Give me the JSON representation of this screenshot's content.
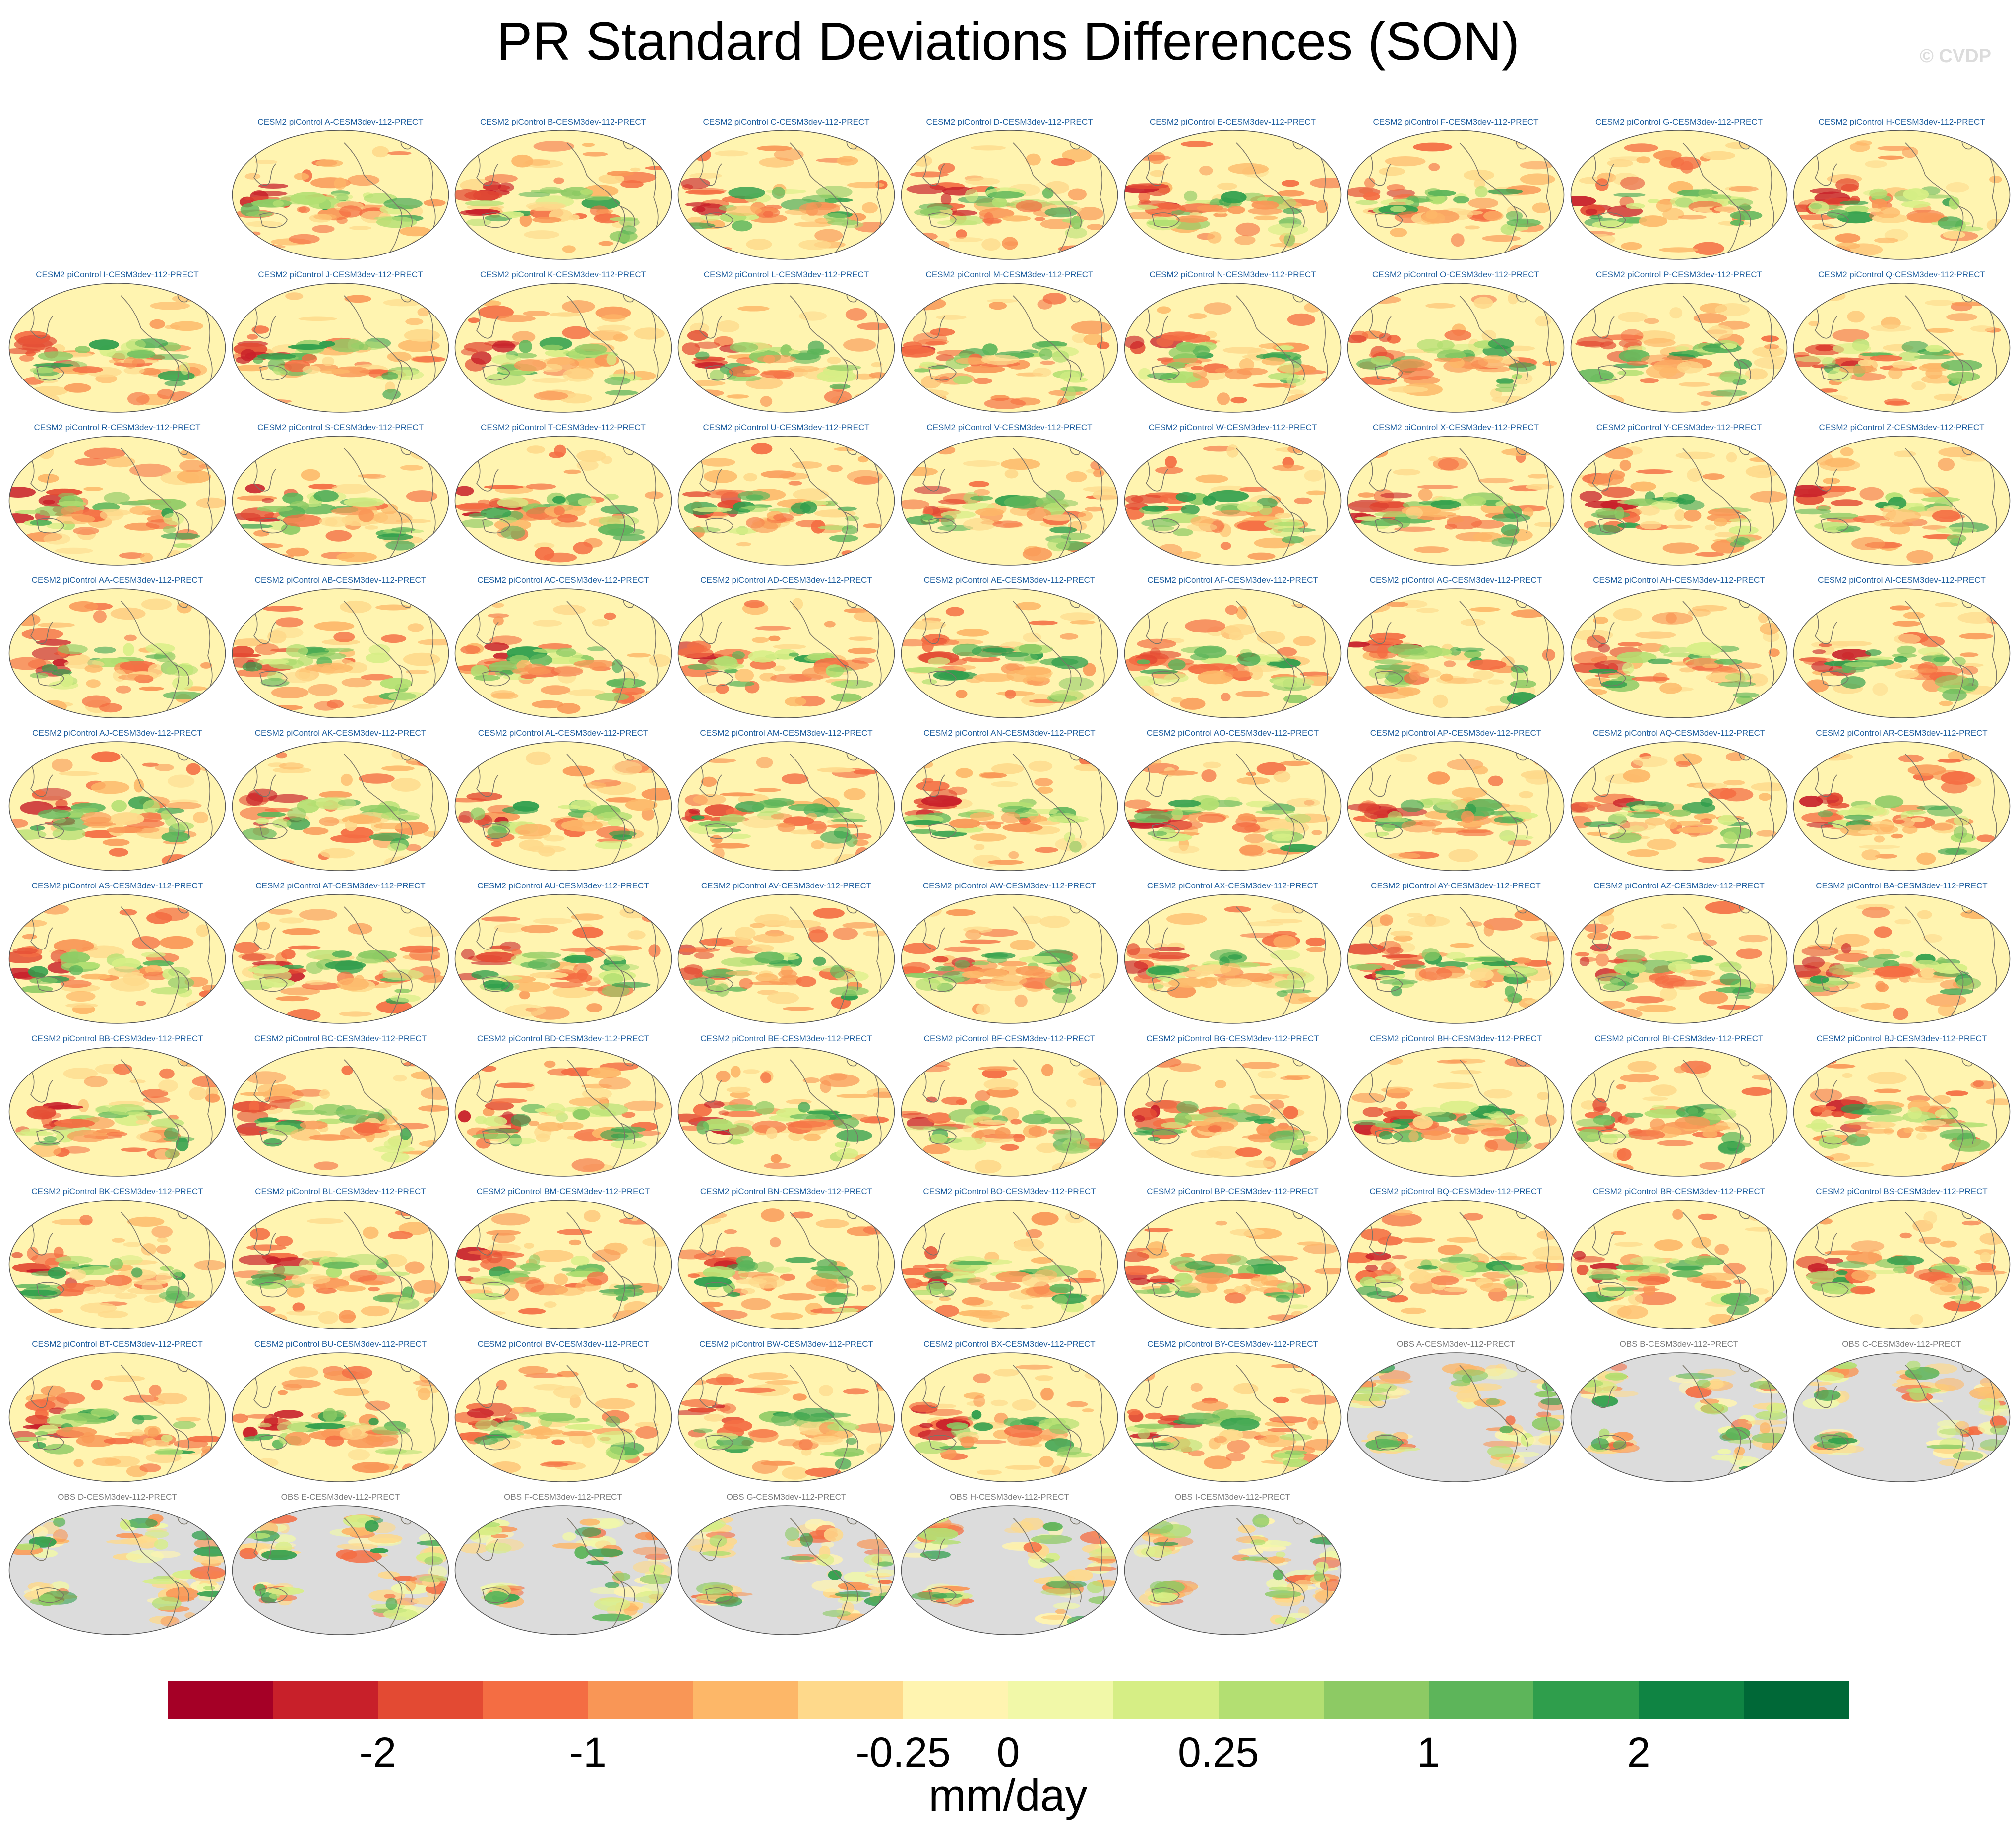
{
  "title": "PR Standard Deviations Differences (SON)",
  "credit": "© CVDP",
  "chart_data": {
    "type": "heatmap",
    "title": "PR Standard Deviations Differences (SON)",
    "projection": "Robinson, Pacific-centered global maps",
    "panels": [
      "CESM2 piControl A-CESM3dev-112-PRECT",
      "CESM2 piControl B-CESM3dev-112-PRECT",
      "CESM2 piControl C-CESM3dev-112-PRECT",
      "CESM2 piControl D-CESM3dev-112-PRECT",
      "CESM2 piControl E-CESM3dev-112-PRECT",
      "CESM2 piControl F-CESM3dev-112-PRECT",
      "CESM2 piControl G-CESM3dev-112-PRECT",
      "CESM2 piControl H-CESM3dev-112-PRECT",
      "CESM2 piControl I-CESM3dev-112-PRECT",
      "CESM2 piControl J-CESM3dev-112-PRECT",
      "CESM2 piControl K-CESM3dev-112-PRECT",
      "CESM2 piControl L-CESM3dev-112-PRECT",
      "CESM2 piControl M-CESM3dev-112-PRECT",
      "CESM2 piControl N-CESM3dev-112-PRECT",
      "CESM2 piControl O-CESM3dev-112-PRECT",
      "CESM2 piControl P-CESM3dev-112-PRECT",
      "CESM2 piControl Q-CESM3dev-112-PRECT",
      "CESM2 piControl R-CESM3dev-112-PRECT",
      "CESM2 piControl S-CESM3dev-112-PRECT",
      "CESM2 piControl T-CESM3dev-112-PRECT",
      "CESM2 piControl U-CESM3dev-112-PRECT",
      "CESM2 piControl V-CESM3dev-112-PRECT",
      "CESM2 piControl W-CESM3dev-112-PRECT",
      "CESM2 piControl X-CESM3dev-112-PRECT",
      "CESM2 piControl Y-CESM3dev-112-PRECT",
      "CESM2 piControl Z-CESM3dev-112-PRECT",
      "CESM2 piControl AA-CESM3dev-112-PRECT",
      "CESM2 piControl AB-CESM3dev-112-PRECT",
      "CESM2 piControl AC-CESM3dev-112-PRECT",
      "CESM2 piControl AD-CESM3dev-112-PRECT",
      "CESM2 piControl AE-CESM3dev-112-PRECT",
      "CESM2 piControl AF-CESM3dev-112-PRECT",
      "CESM2 piControl AG-CESM3dev-112-PRECT",
      "CESM2 piControl AH-CESM3dev-112-PRECT",
      "CESM2 piControl AI-CESM3dev-112-PRECT",
      "CESM2 piControl AJ-CESM3dev-112-PRECT",
      "CESM2 piControl AK-CESM3dev-112-PRECT",
      "CESM2 piControl AL-CESM3dev-112-PRECT",
      "CESM2 piControl AM-CESM3dev-112-PRECT",
      "CESM2 piControl AN-CESM3dev-112-PRECT",
      "CESM2 piControl AO-CESM3dev-112-PRECT",
      "CESM2 piControl AP-CESM3dev-112-PRECT",
      "CESM2 piControl AQ-CESM3dev-112-PRECT",
      "CESM2 piControl AR-CESM3dev-112-PRECT",
      "CESM2 piControl AS-CESM3dev-112-PRECT",
      "CESM2 piControl AT-CESM3dev-112-PRECT",
      "CESM2 piControl AU-CESM3dev-112-PRECT",
      "CESM2 piControl AV-CESM3dev-112-PRECT",
      "CESM2 piControl AW-CESM3dev-112-PRECT",
      "CESM2 piControl AX-CESM3dev-112-PRECT",
      "CESM2 piControl AY-CESM3dev-112-PRECT",
      "CESM2 piControl AZ-CESM3dev-112-PRECT",
      "CESM2 piControl BA-CESM3dev-112-PRECT",
      "CESM2 piControl BB-CESM3dev-112-PRECT",
      "CESM2 piControl BC-CESM3dev-112-PRECT",
      "CESM2 piControl BD-CESM3dev-112-PRECT",
      "CESM2 piControl BE-CESM3dev-112-PRECT",
      "CESM2 piControl BF-CESM3dev-112-PRECT",
      "CESM2 piControl BG-CESM3dev-112-PRECT",
      "CESM2 piControl BH-CESM3dev-112-PRECT",
      "CESM2 piControl BI-CESM3dev-112-PRECT",
      "CESM2 piControl BJ-CESM3dev-112-PRECT",
      "CESM2 piControl BK-CESM3dev-112-PRECT",
      "CESM2 piControl BL-CESM3dev-112-PRECT",
      "CESM2 piControl BM-CESM3dev-112-PRECT",
      "CESM2 piControl BN-CESM3dev-112-PRECT",
      "CESM2 piControl BO-CESM3dev-112-PRECT",
      "CESM2 piControl BP-CESM3dev-112-PRECT",
      "CESM2 piControl BQ-CESM3dev-112-PRECT",
      "CESM2 piControl BR-CESM3dev-112-PRECT",
      "CESM2 piControl BS-CESM3dev-112-PRECT",
      "CESM2 piControl BT-CESM3dev-112-PRECT",
      "CESM2 piControl BU-CESM3dev-112-PRECT",
      "CESM2 piControl BV-CESM3dev-112-PRECT",
      "CESM2 piControl BW-CESM3dev-112-PRECT",
      "CESM2 piControl BX-CESM3dev-112-PRECT",
      "CESM2 piControl BY-CESM3dev-112-PRECT",
      "OBS A-CESM3dev-112-PRECT",
      "OBS B-CESM3dev-112-PRECT",
      "OBS C-CESM3dev-112-PRECT",
      "OBS D-CESM3dev-112-PRECT",
      "OBS E-CESM3dev-112-PRECT",
      "OBS F-CESM3dev-112-PRECT",
      "OBS G-CESM3dev-112-PRECT",
      "OBS H-CESM3dev-112-PRECT",
      "OBS I-CESM3dev-112-PRECT"
    ],
    "colorbar": {
      "units": "mm/day",
      "tick_labels": [
        "-2",
        "-1",
        "-0.25",
        "0",
        "0.25",
        "1",
        "2"
      ],
      "tick_boundary_index": [
        2,
        4,
        7,
        8,
        10,
        12,
        14
      ],
      "colors": [
        "#a50026",
        "#c8202a",
        "#e34a33",
        "#f46d43",
        "#f99656",
        "#fdb768",
        "#fed98b",
        "#fff4b0",
        "#f1f8a8",
        "#d6ee85",
        "#b3df72",
        "#8dca64",
        "#5db55a",
        "#2f9e4c",
        "#0f8443",
        "#006837"
      ]
    }
  },
  "colors": {
    "model_title": "#1f5f9f",
    "obs_title": "#7a7a7a",
    "land_masked": "#dcdcdc",
    "coast": "#7a7568"
  }
}
